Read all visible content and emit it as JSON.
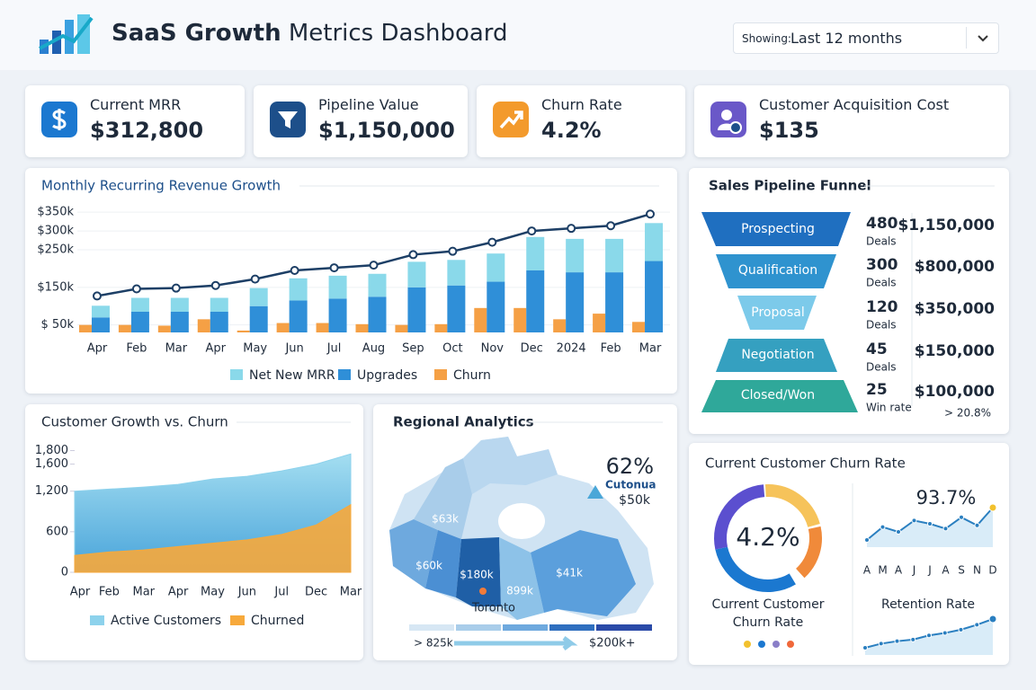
{
  "header": {
    "title_strong": "SaaS Growth",
    "title_rest": "Metrics Dashboard",
    "filter_label": "Showing:",
    "filter_value": "Last 12 months"
  },
  "kpis": [
    {
      "label": "Current MRR",
      "value": "$312,800"
    },
    {
      "label": "Pipeline Value",
      "value": "$1,150,000"
    },
    {
      "label": "Churn Rate",
      "value": "4.2%"
    },
    {
      "label": "Customer Acquisition Cost",
      "value": "$135"
    }
  ],
  "chart_data": [
    {
      "type": "bar-line",
      "title": "Monthly Recurring Revenue Growth",
      "categories": [
        "Apr",
        "Feb",
        "Mar",
        "Apr",
        "May",
        "Jun",
        "Jul",
        "Aug",
        "Sep",
        "Oct",
        "Nov",
        "Dec",
        "2024",
        "Feb",
        "Mar"
      ],
      "ylim": [
        30,
        360
      ],
      "yticks": [
        {
          "value": 350,
          "label": "$350k"
        },
        {
          "value": 300,
          "label": "$300k"
        },
        {
          "value": 250,
          "label": "$250k"
        },
        {
          "value": 150,
          "label": "$150k"
        },
        {
          "value": 50,
          "label": "$ 50k"
        }
      ],
      "grid": true,
      "series": [
        {
          "name": "Net New MRR",
          "color": "#8ad9ea",
          "values": [
            31,
            37,
            37,
            37,
            48,
            59,
            61,
            61,
            68,
            68,
            75,
            89,
            89,
            89,
            101
          ]
        },
        {
          "name": "Upgrades",
          "color": "#2f8fd8",
          "values": [
            70,
            85,
            85,
            85,
            100,
            115,
            120,
            125,
            150,
            155,
            165,
            195,
            190,
            190,
            220
          ]
        },
        {
          "name": "Churn",
          "color": "#f5a045",
          "values": [
            50,
            50,
            48,
            65,
            35,
            55,
            55,
            52,
            50,
            52,
            95,
            95,
            65,
            80,
            58
          ]
        }
      ],
      "line": {
        "color": "#1d3f66",
        "values": [
          127,
          146,
          148,
          155,
          172,
          195,
          202,
          209,
          237,
          246,
          270,
          300,
          307,
          314,
          345
        ]
      }
    },
    {
      "type": "area",
      "title": "Customer Growth vs. Churn",
      "categories": [
        "Apr",
        "Feb",
        "Mar",
        "Apr",
        "May",
        "Jun",
        "Jul",
        "Dec",
        "Mar"
      ],
      "ylim": [
        0,
        1900
      ],
      "yticks": [
        {
          "value": 1800,
          "label": "1,800"
        },
        {
          "value": 1600,
          "label": "1,600"
        },
        {
          "value": 1200,
          "label": "1,200"
        },
        600,
        0
      ],
      "series": [
        {
          "name": "Active Customers",
          "color": "#8dd2ec",
          "values": [
            1200,
            1230,
            1260,
            1300,
            1380,
            1420,
            1500,
            1600,
            1750
          ]
        },
        {
          "name": "Churned",
          "color": "#f7a93b",
          "values": [
            250,
            300,
            330,
            380,
            430,
            480,
            560,
            700,
            1000
          ]
        }
      ]
    },
    {
      "type": "sparkline",
      "title": "93.7%",
      "color": "#2a7fc0",
      "categories": [
        "A",
        "M",
        "A",
        "J",
        "J",
        "A",
        "S",
        "N",
        "D"
      ],
      "values": [
        50,
        58,
        55,
        62,
        60,
        57,
        64,
        59,
        70
      ]
    },
    {
      "type": "sparkline",
      "title": "Retention Rate",
      "color": "#2a7fc0",
      "values": [
        40,
        45,
        48,
        50,
        55,
        58,
        62,
        68,
        75
      ]
    }
  ],
  "funnel": {
    "title": "Sales Pipeline Funnel",
    "stages": [
      {
        "name": "Prospecting",
        "count": 480,
        "unit": "Deals",
        "value": "$1,150,000"
      },
      {
        "name": "Qualification",
        "count": 300,
        "unit": "Deals",
        "value": "$800,000"
      },
      {
        "name": "Proposal",
        "count": 120,
        "unit": "Deals",
        "value": "$350,000"
      },
      {
        "name": "Negotiation",
        "count": 45,
        "unit": "Deals",
        "value": "$150,000"
      },
      {
        "name": "Closed/Won",
        "count": 25,
        "unit": "Win rate",
        "value": "$100,000",
        "note": "> 20.8%"
      }
    ]
  },
  "map": {
    "title": "Regional Analytics",
    "callout_value": "62%",
    "callout_label": "Cutonua",
    "callout_sub": "$50k",
    "region_labels": [
      "$63k",
      "$60k",
      "$180k",
      "899k",
      "$41k"
    ],
    "city": "Toronto",
    "legend_min": "> 825k",
    "legend_max": "$200k+"
  },
  "churn_panel": {
    "title": "Current Customer Churn Rate",
    "donut_value": "4.2%",
    "donut_caption": [
      "Current Customer",
      "Churn Rate"
    ]
  }
}
